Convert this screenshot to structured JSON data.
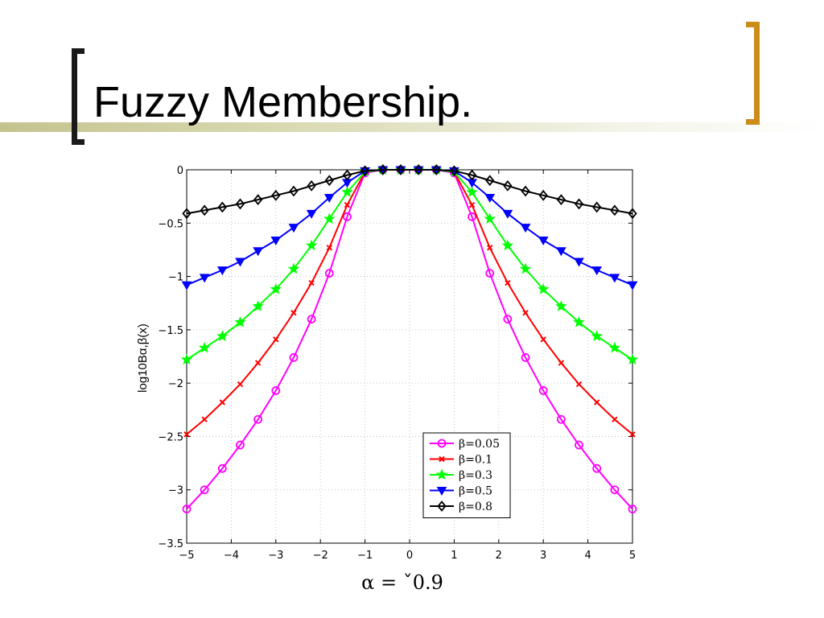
{
  "slide": {
    "title": "Fuzzy Membership.",
    "colors": {
      "accent_band": "#c4c48f",
      "left_bracket": "#1a1a1a",
      "right_bracket": "#cc8c1a"
    }
  },
  "chart_data": {
    "type": "line",
    "title": "",
    "xlabel": "",
    "ylabel": "log10Bα,β(x)",
    "caption": "α = ˇ0.9",
    "xlim": [
      -5,
      5
    ],
    "ylim": [
      -3.5,
      0
    ],
    "xticks": [
      -5,
      -4,
      -3,
      -2,
      -1,
      0,
      1,
      2,
      3,
      4,
      5
    ],
    "xtick_labels": [
      "−5",
      "−4",
      "−3",
      "−2",
      "−1",
      "0",
      "1",
      "2",
      "3",
      "4",
      "5"
    ],
    "yticks": [
      0,
      -0.5,
      -1,
      -1.5,
      -2,
      -2.5,
      -3,
      -3.5
    ],
    "ytick_labels": [
      "0",
      "−0.5",
      "−1",
      "−1.5",
      "−2",
      "−2.5",
      "−3",
      "−3.5"
    ],
    "grid": true,
    "legend_position": "bottom-right",
    "x": [
      -5,
      -4.6,
      -4.2,
      -3.8,
      -3.4,
      -3.0,
      -2.6,
      -2.2,
      -1.8,
      -1.4,
      -1.0,
      -0.6,
      -0.2,
      0.2,
      0.6,
      1.0,
      1.4,
      1.8,
      2.2,
      2.6,
      3.0,
      3.4,
      3.8,
      4.2,
      4.6,
      5.0
    ],
    "series": [
      {
        "name": "β=0.05",
        "color": "#ff00ff",
        "marker": "circle",
        "values": [
          -3.18,
          -3.0,
          -2.8,
          -2.58,
          -2.34,
          -2.07,
          -1.76,
          -1.4,
          -0.97,
          -0.44,
          -0.03,
          0.0,
          0.0,
          0.0,
          0.0,
          -0.03,
          -0.44,
          -0.97,
          -1.4,
          -1.76,
          -2.07,
          -2.34,
          -2.58,
          -2.8,
          -3.0,
          -3.18
        ]
      },
      {
        "name": "β=0.1",
        "color": "#ff0000",
        "marker": "x",
        "values": [
          -2.48,
          -2.34,
          -2.18,
          -2.01,
          -1.81,
          -1.59,
          -1.34,
          -1.06,
          -0.73,
          -0.33,
          -0.02,
          0.0,
          0.0,
          0.0,
          0.0,
          -0.02,
          -0.33,
          -0.73,
          -1.06,
          -1.34,
          -1.59,
          -1.81,
          -2.01,
          -2.18,
          -2.34,
          -2.48
        ]
      },
      {
        "name": "β=0.3",
        "color": "#00ff00",
        "marker": "star",
        "values": [
          -1.78,
          -1.67,
          -1.56,
          -1.43,
          -1.28,
          -1.12,
          -0.93,
          -0.71,
          -0.46,
          -0.21,
          -0.02,
          0.0,
          0.0,
          0.0,
          0.0,
          -0.02,
          -0.21,
          -0.46,
          -0.71,
          -0.93,
          -1.12,
          -1.28,
          -1.43,
          -1.56,
          -1.67,
          -1.78
        ]
      },
      {
        "name": "β=0.5",
        "color": "#0000ff",
        "marker": "triangle-down",
        "values": [
          -1.08,
          -1.01,
          -0.94,
          -0.86,
          -0.76,
          -0.66,
          -0.54,
          -0.41,
          -0.26,
          -0.12,
          -0.01,
          0.0,
          0.0,
          0.0,
          0.0,
          -0.01,
          -0.12,
          -0.26,
          -0.41,
          -0.54,
          -0.66,
          -0.76,
          -0.86,
          -0.94,
          -1.01,
          -1.08
        ]
      },
      {
        "name": "β=0.8",
        "color": "#000000",
        "marker": "diamond",
        "values": [
          -0.41,
          -0.38,
          -0.35,
          -0.32,
          -0.28,
          -0.24,
          -0.2,
          -0.15,
          -0.1,
          -0.05,
          -0.01,
          0.0,
          0.0,
          0.0,
          0.0,
          -0.01,
          -0.05,
          -0.1,
          -0.15,
          -0.2,
          -0.24,
          -0.28,
          -0.32,
          -0.35,
          -0.38,
          -0.41
        ]
      }
    ]
  }
}
